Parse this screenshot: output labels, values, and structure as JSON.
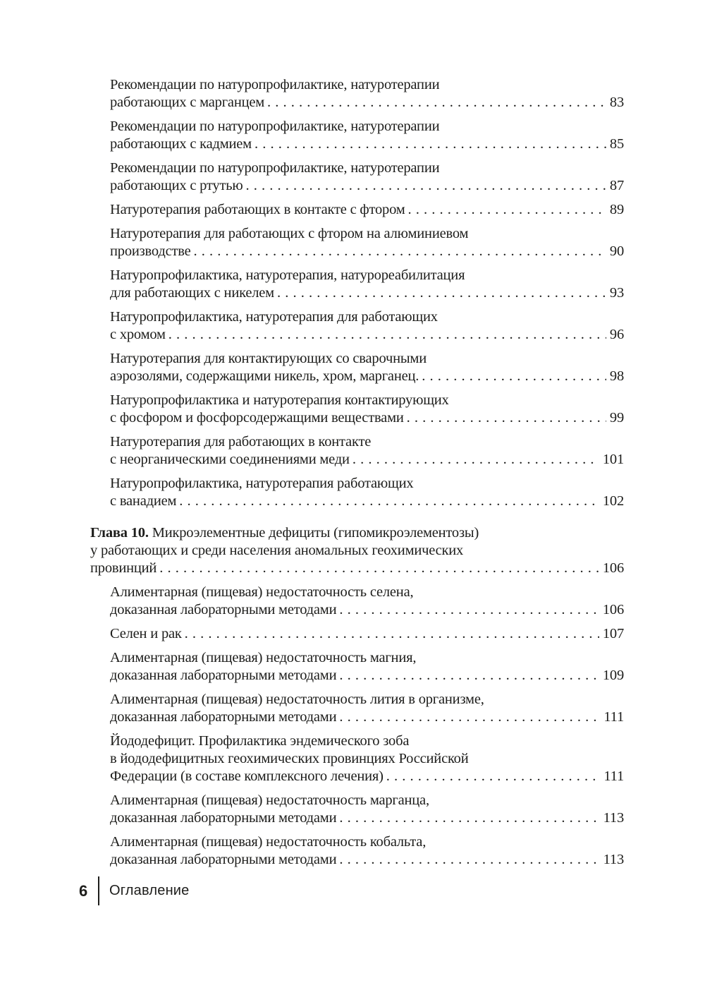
{
  "page": {
    "background_color": "#ffffff",
    "text_color": "#1d1d1b"
  },
  "footer": {
    "page_number": "6",
    "section_label": "Оглавление"
  },
  "toc": {
    "entries": [
      {
        "level": "sub",
        "lines": [
          "Рекомендации по натуропрофилактике, натуротерапии",
          "работающих с марганцем"
        ],
        "page": "83"
      },
      {
        "level": "sub",
        "lines": [
          "Рекомендации по натуропрофилактике, натуротерапии",
          "работающих с кадмием"
        ],
        "page": "85"
      },
      {
        "level": "sub",
        "lines": [
          "Рекомендации по натуропрофилактике, натуротерапии",
          "работающих с ртутью"
        ],
        "page": "87"
      },
      {
        "level": "sub",
        "lines": [
          "Натуротерапия работающих в контакте с фтором"
        ],
        "page": "89"
      },
      {
        "level": "sub",
        "lines": [
          "Натуротерапия для работающих с фтором на алюминиевом",
          "производстве"
        ],
        "page": "90"
      },
      {
        "level": "sub",
        "lines": [
          "Натуропрофилактика, натуротерапия, натурореабилитация",
          "для работающих с никелем"
        ],
        "page": "93"
      },
      {
        "level": "sub",
        "lines": [
          "Натуропрофилактика, натуротерапия для работающих",
          "с хромом"
        ],
        "page": "96"
      },
      {
        "level": "sub",
        "lines": [
          "Натуротерапия для контактирующих со сварочными",
          "аэрозолями, содержащими никель, хром, марганец."
        ],
        "page": "98"
      },
      {
        "level": "sub",
        "lines": [
          "Натуропрофилактика и натуротерапия контактирующих",
          "с фосфором и фосфорсодержащими веществами"
        ],
        "page": "99"
      },
      {
        "level": "sub",
        "lines": [
          "Натуротерапия для работающих в контакте",
          "с неорганическими соединениями меди"
        ],
        "page": "101"
      },
      {
        "level": "sub",
        "lines": [
          "Натуропрофилактика, натуротерапия работающих",
          "с ванадием"
        ],
        "page": "102"
      },
      {
        "level": "chapter",
        "prefix": "Глава 10.",
        "lines": [
          "Микроэлементные дефициты (гипомикроэлементозы)",
          "у работающих и среди населения аномальных геохимических",
          "провинций"
        ],
        "page": "106"
      },
      {
        "level": "sub",
        "lines": [
          "Алиментарная (пищевая) недостаточность селена,",
          "доказанная лабораторными методами"
        ],
        "page": "106"
      },
      {
        "level": "sub",
        "lines": [
          "Селен и рак"
        ],
        "page": "107"
      },
      {
        "level": "sub",
        "lines": [
          "Алиментарная (пищевая) недостаточность магния,",
          "доказанная лабораторными методами"
        ],
        "page": "109"
      },
      {
        "level": "sub",
        "lines": [
          "Алиментарная (пищевая) недостаточность лития в организме,",
          "доказанная лабораторными методами"
        ],
        "page": "111"
      },
      {
        "level": "sub",
        "lines": [
          "Йододефицит. Профилактика эндемического зоба",
          "в йододефицитных геохимических провинциях Российской",
          "Федерации (в составе комплексного лечения)"
        ],
        "page": "111"
      },
      {
        "level": "sub",
        "lines": [
          "Алиментарная (пищевая) недостаточность марганца,",
          "доказанная лабораторными методами"
        ],
        "page": "113"
      },
      {
        "level": "sub",
        "lines": [
          "Алиментарная (пищевая) недостаточность кобальта,",
          "доказанная лабораторными методами"
        ],
        "page": "113"
      }
    ]
  }
}
